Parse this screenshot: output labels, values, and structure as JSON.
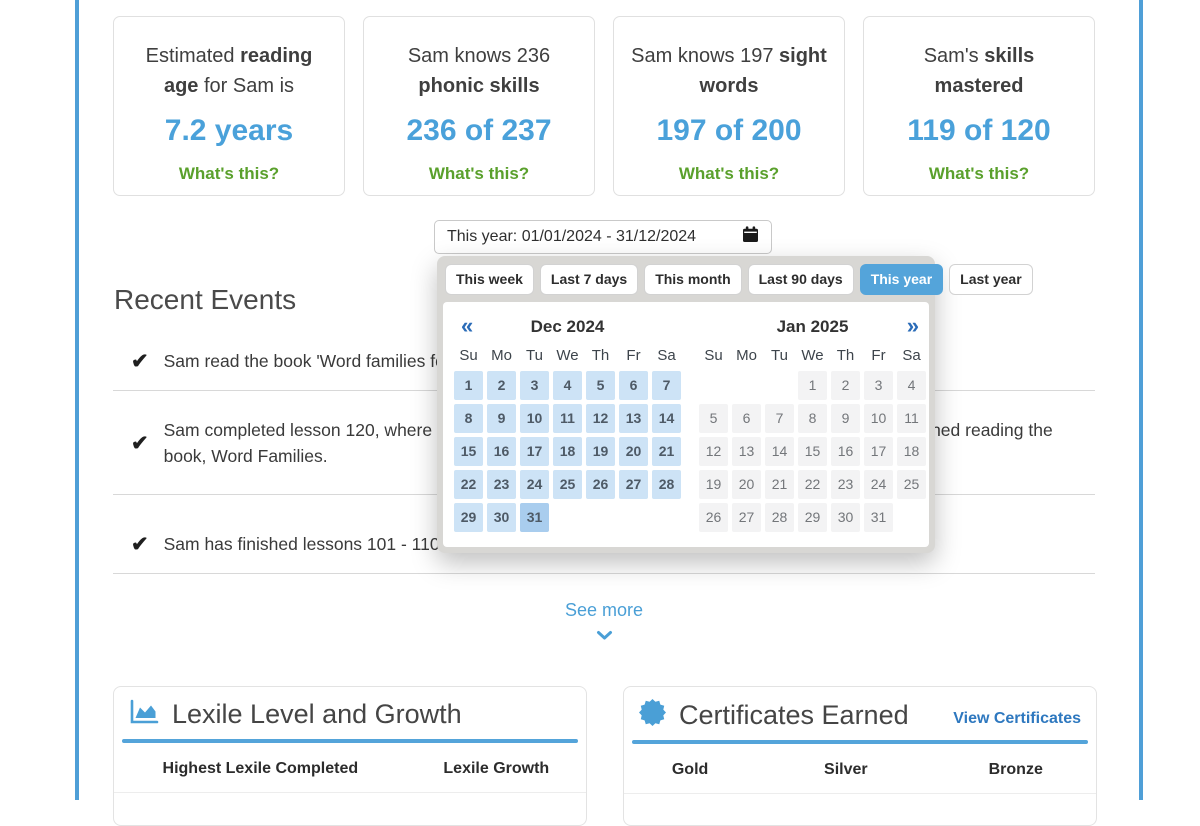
{
  "colors": {
    "accent_blue": "#4aa1da",
    "active_preset_blue": "#54a4da",
    "green": "#5aa02c",
    "link_blue": "#2e78bf",
    "page_border_blue": "#4f9fd7",
    "range_highlight": "#cde3f6",
    "range_end_highlight": "#a9cdee"
  },
  "stat_cards": [
    {
      "title_pre": "Estimated ",
      "title_bold": "reading age",
      "title_post": " for Sam is",
      "value": "7.2 years",
      "link": "What's this?"
    },
    {
      "title_pre": "Sam knows 236 ",
      "title_bold": "phonic skills",
      "title_post": "",
      "value": "236 of 237",
      "link": "What's this?"
    },
    {
      "title_pre": "Sam knows 197 ",
      "title_bold": "sight words",
      "title_post": "",
      "value": "197 of 200",
      "link": "What's this?"
    },
    {
      "title_pre": "Sam's ",
      "title_bold": "skills mastered",
      "title_post": "",
      "value": "119 of 120",
      "link": "What's this?"
    }
  ],
  "datepicker": {
    "input_value": "This year: 01/01/2024 - 31/12/2024",
    "presets": [
      "This week",
      "Last 7 days",
      "This month",
      "Last 90 days",
      "This year",
      "Last year"
    ],
    "active_preset": "This year",
    "prev_glyph": "«",
    "next_glyph": "»",
    "months": [
      {
        "title": "Dec 2024",
        "has_prev": true,
        "has_next": false,
        "weekdays": [
          "Su",
          "Mo",
          "Tu",
          "We",
          "Th",
          "Fr",
          "Sa"
        ],
        "leading_blanks": 0,
        "days": [
          1,
          2,
          3,
          4,
          5,
          6,
          7,
          8,
          9,
          10,
          11,
          12,
          13,
          14,
          15,
          16,
          17,
          18,
          19,
          20,
          21,
          22,
          23,
          24,
          25,
          26,
          27,
          28,
          29,
          30,
          31
        ],
        "mode": "selected",
        "range_end_day": 31
      },
      {
        "title": "Jan 2025",
        "has_prev": false,
        "has_next": true,
        "weekdays": [
          "Su",
          "Mo",
          "Tu",
          "We",
          "Th",
          "Fr",
          "Sa"
        ],
        "leading_blanks": 3,
        "days": [
          1,
          2,
          3,
          4,
          5,
          6,
          7,
          8,
          9,
          10,
          11,
          12,
          13,
          14,
          15,
          16,
          17,
          18,
          19,
          20,
          21,
          22,
          23,
          24,
          25,
          26,
          27,
          28,
          29,
          30,
          31
        ],
        "mode": "muted",
        "range_end_day": null
      }
    ]
  },
  "recent_events": {
    "heading": "Recent Events",
    "check_glyph": "✔",
    "items": [
      {
        "text": "Sam read the book 'Word families for beginners'."
      },
      {
        "text": "Sam completed lesson 120, where Sam read and matched words from word families, and then finished reading the book, Word Families."
      },
      {
        "text": "Sam has finished lessons 101 - 110."
      }
    ],
    "see_more": "See more"
  },
  "lexile_card": {
    "title": "Lexile Level and Growth",
    "columns": [
      "Highest Lexile Completed",
      "Lexile Growth"
    ]
  },
  "certificates_card": {
    "title": "Certificates Earned",
    "link": "View Certificates",
    "columns": [
      "Gold",
      "Silver",
      "Bronze"
    ]
  }
}
